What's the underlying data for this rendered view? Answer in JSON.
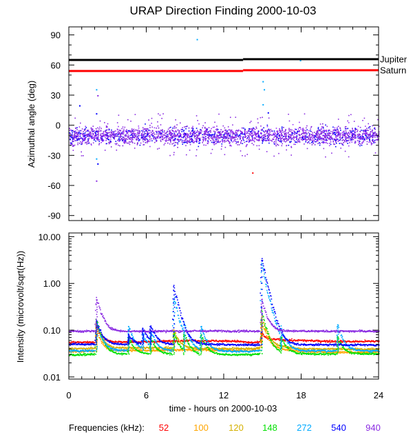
{
  "chart_data": [
    {
      "type": "scatter",
      "title": "URAP Direction Finding  2000-10-03",
      "ylabel": "Azimuthal angle (deg)",
      "xlim": [
        0,
        24
      ],
      "ylim": [
        -95,
        98
      ],
      "x_ticks": [
        "0",
        "6",
        "12",
        "18",
        "24"
      ],
      "y_ticks": [
        {
          "value": 90,
          "label": "90"
        },
        {
          "value": 60,
          "label": "60"
        },
        {
          "value": 30,
          "label": "30"
        },
        {
          "value": 0,
          "label": "0"
        },
        {
          "value": -30,
          "label": "-30"
        },
        {
          "value": -60,
          "label": "-60"
        },
        {
          "value": -90,
          "label": "-90"
        }
      ],
      "reference_lines": [
        {
          "label": "Jupiter",
          "color": "#000000",
          "y_start": 65,
          "y_end": 66
        },
        {
          "label": "Saturn",
          "color": "#ff0000",
          "y_start": 54,
          "y_end": 55
        }
      ],
      "main_band": {
        "center": -10,
        "spread": 8,
        "x_range": [
          0,
          24
        ]
      },
      "outliers": [
        {
          "x": 0.8,
          "y": 20,
          "color": "#0000ff"
        },
        {
          "x": 2.1,
          "y": 36,
          "color": "#00aaff"
        },
        {
          "x": 2.2,
          "y": 30,
          "color": "#8a2be2"
        },
        {
          "x": 2.0,
          "y": 66,
          "color": "#0000ff"
        },
        {
          "x": 2.1,
          "y": 12,
          "color": "#0000ff"
        },
        {
          "x": 2.1,
          "y": -33,
          "color": "#00aaff"
        },
        {
          "x": 2.1,
          "y": -55,
          "color": "#8a2be2"
        },
        {
          "x": 2.2,
          "y": -38,
          "color": "#0000ff"
        },
        {
          "x": 9.9,
          "y": 86,
          "color": "#00aaff"
        },
        {
          "x": 15.0,
          "y": 44,
          "color": "#00aaff"
        },
        {
          "x": 15.1,
          "y": 36,
          "color": "#00aaff"
        },
        {
          "x": 15.0,
          "y": 21,
          "color": "#00aaff"
        },
        {
          "x": 15.4,
          "y": 13,
          "color": "#0000ff"
        },
        {
          "x": 14.2,
          "y": -47,
          "color": "#ff0000"
        },
        {
          "x": 17.9,
          "y": 65,
          "color": "#00aaff"
        }
      ]
    },
    {
      "type": "scatter",
      "ylabel": "Intensity (microvolt/sqrt(Hz))",
      "xlabel": "time - hours on 2000-10-03",
      "xlim": [
        0,
        24
      ],
      "ylim": [
        0.009,
        12
      ],
      "log_y": true,
      "x_ticks": [
        "0",
        "6",
        "12",
        "18",
        "24"
      ],
      "y_ticks": [
        {
          "value": 10,
          "label": "10.00"
        },
        {
          "value": 1,
          "label": "1.00"
        },
        {
          "value": 0.1,
          "label": "0.10"
        },
        {
          "value": 0.01,
          "label": "0.01"
        }
      ],
      "series": [
        {
          "name": "52",
          "color": "#ff0000",
          "baseline": [
            [
              0,
              0.055
            ],
            [
              6,
              0.056
            ],
            [
              9,
              0.06
            ],
            [
              11,
              0.059
            ],
            [
              13,
              0.058
            ],
            [
              14,
              0.054
            ],
            [
              15,
              0.055
            ],
            [
              16,
              0.062
            ],
            [
              19,
              0.059
            ],
            [
              22,
              0.057
            ],
            [
              24,
              0.058
            ]
          ]
        },
        {
          "name": "100",
          "color": "#ffa500",
          "baseline": [
            [
              0,
              0.035
            ],
            [
              6,
              0.037
            ],
            [
              10,
              0.038
            ],
            [
              14,
              0.036
            ],
            [
              15,
              0.045
            ],
            [
              16,
              0.04
            ],
            [
              18,
              0.035
            ],
            [
              22,
              0.033
            ],
            [
              24,
              0.034
            ]
          ]
        },
        {
          "name": "120",
          "color": "#d4b000",
          "baseline": [
            [
              0,
              0.04
            ],
            [
              6,
              0.042
            ],
            [
              10,
              0.041
            ],
            [
              14,
              0.04
            ],
            [
              16,
              0.045
            ],
            [
              18,
              0.04
            ],
            [
              24,
              0.039
            ]
          ]
        },
        {
          "name": "148",
          "color": "#00e000",
          "baseline": [
            [
              0,
              0.03
            ],
            [
              6,
              0.031
            ],
            [
              10,
              0.03
            ],
            [
              14,
              0.03
            ],
            [
              16,
              0.033
            ],
            [
              18,
              0.031
            ],
            [
              24,
              0.031
            ]
          ]
        },
        {
          "name": "272",
          "color": "#00aaff",
          "baseline": [
            [
              0,
              0.036
            ],
            [
              6,
              0.037
            ],
            [
              10,
              0.036
            ],
            [
              14,
              0.035
            ],
            [
              16,
              0.04
            ],
            [
              18,
              0.036
            ],
            [
              24,
              0.036
            ]
          ]
        },
        {
          "name": "540",
          "color": "#0000ff",
          "baseline": [
            [
              0,
              0.05
            ],
            [
              6,
              0.05
            ],
            [
              10,
              0.05
            ],
            [
              14,
              0.048
            ],
            [
              16,
              0.05
            ],
            [
              18,
              0.049
            ],
            [
              24,
              0.048
            ]
          ]
        },
        {
          "name": "940",
          "color": "#8a2be2",
          "baseline": [
            [
              0,
              0.095
            ],
            [
              6,
              0.095
            ],
            [
              12,
              0.096
            ],
            [
              18,
              0.095
            ],
            [
              24,
              0.095
            ]
          ]
        }
      ],
      "bursts": [
        {
          "x": 2.1,
          "peaks": {
            "0": 0.12,
            "1": 0.1,
            "2": 0.14,
            "3": 0.17,
            "4": 0.15,
            "5": 0.16,
            "6": 0.5
          }
        },
        {
          "x": 4.6,
          "peaks": {
            "4": 0.12,
            "5": 0.08,
            "3": 0.07
          }
        },
        {
          "x": 5.7,
          "peaks": {
            "5": 0.11,
            "4": 0.08
          }
        },
        {
          "x": 6.3,
          "peaks": {
            "5": 0.12,
            "4": 0.09,
            "3": 0.07
          }
        },
        {
          "x": 8.1,
          "peaks": {
            "5": 0.85,
            "4": 0.5,
            "2": 0.1,
            "3": 0.09
          }
        },
        {
          "x": 8.9,
          "peaks": {
            "4": 0.1,
            "3": 0.08
          }
        },
        {
          "x": 10.2,
          "peaks": {
            "4": 0.12,
            "3": 0.08
          }
        },
        {
          "x": 14.9,
          "peaks": {
            "5": 3.4,
            "4": 2.5,
            "3": 0.25,
            "2": 0.2,
            "1": 0.15,
            "0": 0.09,
            "6": 0.45
          }
        },
        {
          "x": 16.4,
          "peaks": {
            "4": 0.08,
            "3": 0.07
          }
        },
        {
          "x": 20.8,
          "peaks": {
            "4": 0.13,
            "3": 0.07
          }
        }
      ]
    }
  ],
  "legend": {
    "label": "Frequencies (kHz):",
    "items": [
      {
        "text": "52",
        "color": "#ff0000"
      },
      {
        "text": "100",
        "color": "#ffa500"
      },
      {
        "text": "120",
        "color": "#d4b000"
      },
      {
        "text": "148",
        "color": "#00e000"
      },
      {
        "text": "272",
        "color": "#00aaff"
      },
      {
        "text": "540",
        "color": "#0000ff"
      },
      {
        "text": "940",
        "color": "#8a2be2"
      }
    ]
  }
}
